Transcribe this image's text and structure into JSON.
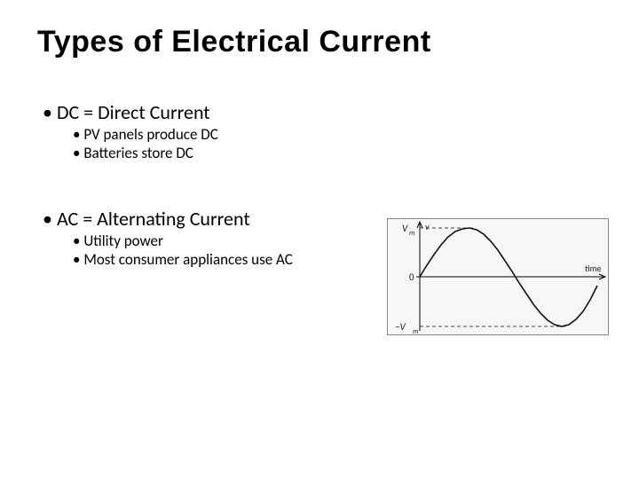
{
  "title": "Types of Electrical Current",
  "dc": {
    "heading": "DC = Direct Current",
    "sub1": "PV panels produce DC",
    "sub2": "Batteries store DC"
  },
  "ac": {
    "heading": "AC = Alternating Current",
    "sub1": "Utility power",
    "sub2": "Most consumer appliances use AC"
  },
  "chart": {
    "type": "line",
    "background_color": "#f7f7f7",
    "axis_color": "#000000",
    "line_color": "#111111",
    "dash_color": "#444444",
    "label_color": "#222222",
    "label_fontsize": 11,
    "y_label_top": "V",
    "y_label_top_sub": "m",
    "y_label_zero": "0",
    "y_label_bottom": "−V",
    "y_label_bottom_sub": "m",
    "x_label": "time",
    "xlim": [
      0,
      200
    ],
    "ylim": [
      -1,
      1
    ],
    "amplitude": 1,
    "peak_lines": true,
    "sine_points": [
      [
        36,
        65
      ],
      [
        44,
        52
      ],
      [
        52,
        40
      ],
      [
        60,
        29
      ],
      [
        68,
        20
      ],
      [
        76,
        14
      ],
      [
        84,
        11
      ],
      [
        92,
        10
      ],
      [
        100,
        12
      ],
      [
        108,
        17
      ],
      [
        116,
        25
      ],
      [
        124,
        35
      ],
      [
        132,
        47
      ],
      [
        140,
        59
      ],
      [
        148,
        72
      ],
      [
        156,
        84
      ],
      [
        164,
        96
      ],
      [
        172,
        106
      ],
      [
        180,
        114
      ],
      [
        188,
        119
      ],
      [
        196,
        121
      ],
      [
        204,
        119
      ],
      [
        212,
        113
      ],
      [
        220,
        104
      ],
      [
        228,
        91
      ],
      [
        236,
        75
      ]
    ],
    "axis_y_x": 36,
    "axis_x_y": 65,
    "top_dash_y": 10,
    "bottom_dash_y": 121,
    "line_width": 1.6
  }
}
